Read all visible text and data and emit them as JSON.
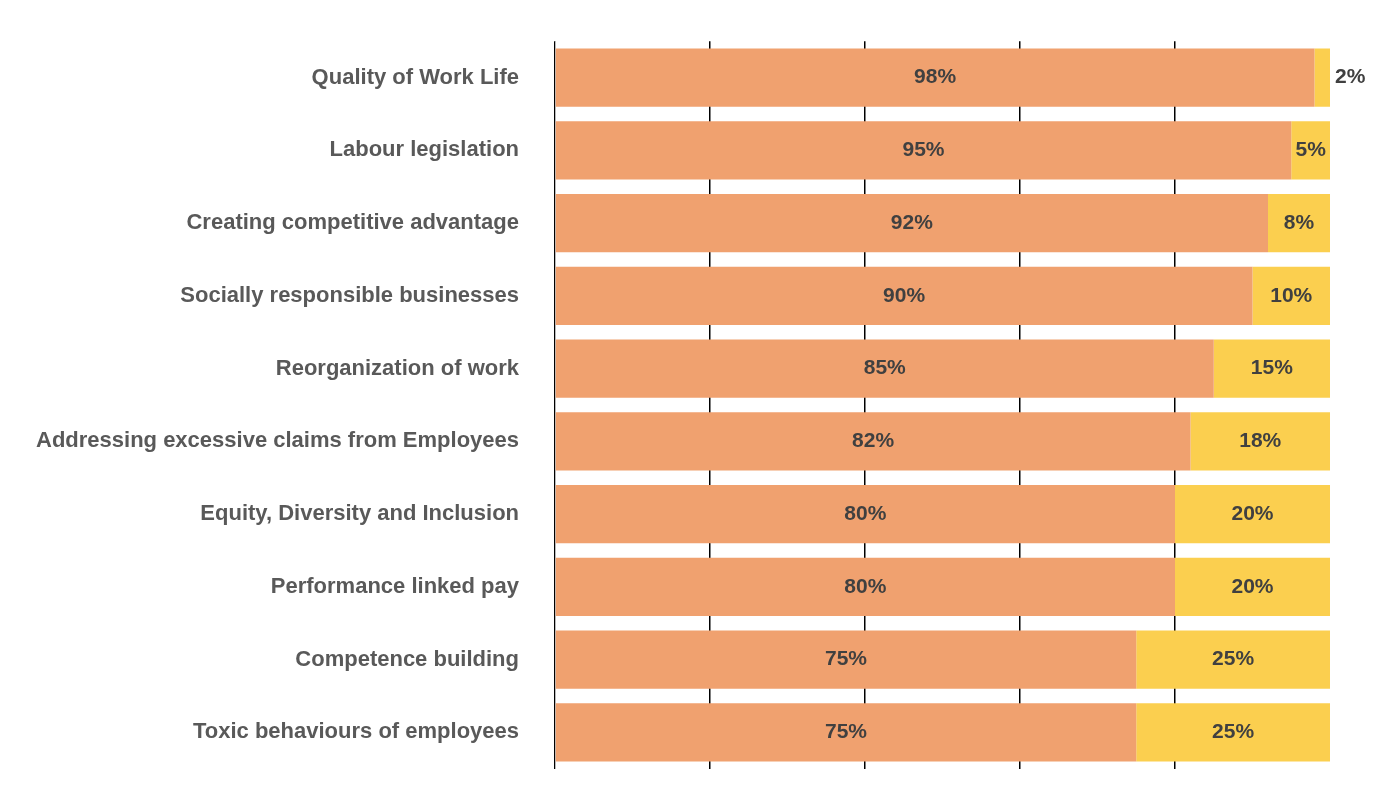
{
  "chart_data": {
    "type": "bar",
    "orientation": "horizontal",
    "stacked": true,
    "categories": [
      "Quality of Work Life",
      "Labour legislation",
      "Creating competitive advantage",
      "Socially responsible businesses",
      "Reorganization of work",
      "Addressing excessive claims from Employees",
      "Equity, Diversity and Inclusion",
      "Performance linked pay",
      "Competence building",
      "Toxic behaviours of employees"
    ],
    "series": [
      {
        "color": "#f0a16f",
        "values": [
          98,
          95,
          92,
          90,
          85,
          82,
          80,
          80,
          75,
          75
        ],
        "value_labels": [
          "98%",
          "95%",
          "92%",
          "90%",
          "85%",
          "82%",
          "80%",
          "80%",
          "75%",
          "75%"
        ]
      },
      {
        "color": "#fbcf4f",
        "values": [
          2,
          5,
          8,
          10,
          15,
          18,
          20,
          20,
          25,
          25
        ],
        "value_labels": [
          "2%",
          "5%",
          "8%",
          "10%",
          "15%",
          "18%",
          "20%",
          "20%",
          "25%",
          "25%"
        ]
      }
    ],
    "xlim": [
      0,
      100
    ],
    "xticks": [
      {
        "value": 0,
        "label": null
      },
      {
        "value": 20,
        "label": null
      },
      {
        "value": 40,
        "label": null
      },
      {
        "value": 60,
        "label": null
      },
      {
        "value": 80,
        "label": null
      }
    ],
    "grid": "x",
    "tick_labels": "y",
    "legend": false
  }
}
